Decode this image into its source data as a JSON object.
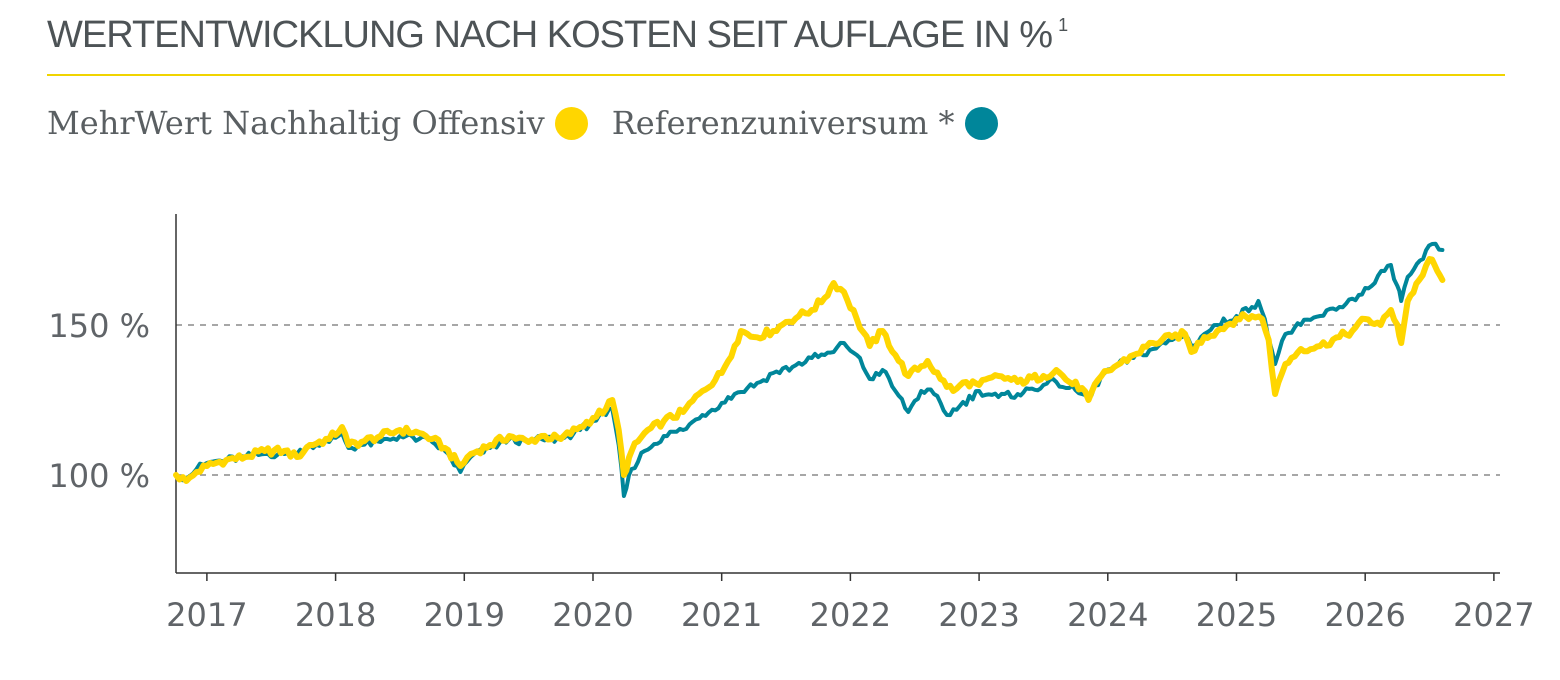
{
  "header": {
    "title": "WERTENTWICKLUNG NACH KOSTEN SEIT AUFLAGE IN %",
    "footnote_mark": "1"
  },
  "legend": {
    "items": [
      {
        "label": "MehrWert Nachhaltig Offensiv",
        "color": "#ffd600"
      },
      {
        "label": "Referenzuniversum *",
        "color": "#00869a"
      }
    ]
  },
  "chart_data": {
    "type": "line",
    "title": "WERTENTWICKLUNG NACH KOSTEN SEIT AUFLAGE IN %",
    "xlabel": "",
    "ylabel": "",
    "xlim": [
      2016.76,
      2027
    ],
    "ylim": [
      68,
      187
    ],
    "x_ticks": [
      "2017",
      "2018",
      "2019",
      "2020",
      "2021",
      "2022",
      "2023",
      "2024",
      "2025",
      "2026",
      "2027"
    ],
    "y_ticks": [
      {
        "value": 100,
        "label": "100 %"
      },
      {
        "value": 150,
        "label": "150 %"
      }
    ],
    "grid": "horizontal dashed at 100 % and 150 %",
    "legend_position": "top-left",
    "series": [
      {
        "name": "MehrWert Nachhaltig Offensiv",
        "color": "#ffd600",
        "points": [
          [
            2016.76,
            100
          ],
          [
            2016.84,
            98
          ],
          [
            2016.92,
            101
          ],
          [
            2017.0,
            103
          ],
          [
            2017.15,
            105
          ],
          [
            2017.3,
            106
          ],
          [
            2017.45,
            108
          ],
          [
            2017.6,
            108
          ],
          [
            2017.7,
            106
          ],
          [
            2017.8,
            110
          ],
          [
            2017.95,
            112
          ],
          [
            2018.05,
            116
          ],
          [
            2018.1,
            110
          ],
          [
            2018.2,
            111
          ],
          [
            2018.35,
            113
          ],
          [
            2018.5,
            115
          ],
          [
            2018.65,
            114
          ],
          [
            2018.75,
            112
          ],
          [
            2018.85,
            109
          ],
          [
            2018.97,
            103
          ],
          [
            2019.05,
            107
          ],
          [
            2019.2,
            110
          ],
          [
            2019.35,
            113
          ],
          [
            2019.5,
            111
          ],
          [
            2019.6,
            113
          ],
          [
            2019.75,
            112
          ],
          [
            2019.9,
            116
          ],
          [
            2020.0,
            119
          ],
          [
            2020.1,
            122
          ],
          [
            2020.15,
            125
          ],
          [
            2020.2,
            115
          ],
          [
            2020.24,
            100
          ],
          [
            2020.3,
            108
          ],
          [
            2020.4,
            114
          ],
          [
            2020.55,
            118
          ],
          [
            2020.7,
            121
          ],
          [
            2020.85,
            128
          ],
          [
            2021.0,
            134
          ],
          [
            2021.1,
            143
          ],
          [
            2021.15,
            148
          ],
          [
            2021.25,
            146
          ],
          [
            2021.4,
            148
          ],
          [
            2021.5,
            151
          ],
          [
            2021.6,
            153
          ],
          [
            2021.7,
            155
          ],
          [
            2021.8,
            159
          ],
          [
            2021.87,
            164
          ],
          [
            2021.95,
            161
          ],
          [
            2022.05,
            152
          ],
          [
            2022.15,
            143
          ],
          [
            2022.25,
            148
          ],
          [
            2022.35,
            140
          ],
          [
            2022.45,
            133
          ],
          [
            2022.6,
            138
          ],
          [
            2022.7,
            132
          ],
          [
            2022.8,
            128
          ],
          [
            2022.9,
            131
          ],
          [
            2023.0,
            130
          ],
          [
            2023.15,
            133
          ],
          [
            2023.3,
            131
          ],
          [
            2023.5,
            133
          ],
          [
            2023.6,
            135
          ],
          [
            2023.7,
            131
          ],
          [
            2023.8,
            129
          ],
          [
            2023.85,
            125
          ],
          [
            2023.95,
            133
          ],
          [
            2024.05,
            136
          ],
          [
            2024.2,
            140
          ],
          [
            2024.35,
            144
          ],
          [
            2024.5,
            146
          ],
          [
            2024.6,
            147
          ],
          [
            2024.65,
            141
          ],
          [
            2024.75,
            146
          ],
          [
            2024.85,
            148
          ],
          [
            2025.0,
            152
          ],
          [
            2025.12,
            153
          ],
          [
            2025.2,
            152
          ],
          [
            2025.25,
            145
          ],
          [
            2025.3,
            127
          ],
          [
            2025.38,
            137
          ],
          [
            2025.5,
            142
          ],
          [
            2025.65,
            143
          ],
          [
            2025.8,
            146
          ],
          [
            2025.9,
            148
          ],
          [
            2026.0,
            152
          ],
          [
            2026.12,
            150
          ],
          [
            2026.2,
            155
          ],
          [
            2026.25,
            150
          ],
          [
            2026.28,
            144
          ],
          [
            2026.33,
            158
          ],
          [
            2026.42,
            165
          ],
          [
            2026.5,
            172
          ],
          [
            2026.56,
            168
          ],
          [
            2026.6,
            165
          ]
        ]
      },
      {
        "name": "Referenzuniversum *",
        "color": "#00869a",
        "points": [
          [
            2016.76,
            100
          ],
          [
            2016.84,
            99
          ],
          [
            2016.92,
            102
          ],
          [
            2017.0,
            104
          ],
          [
            2017.15,
            105
          ],
          [
            2017.3,
            106
          ],
          [
            2017.45,
            107
          ],
          [
            2017.6,
            107
          ],
          [
            2017.7,
            107
          ],
          [
            2017.8,
            110
          ],
          [
            2017.95,
            111
          ],
          [
            2018.05,
            114
          ],
          [
            2018.1,
            109
          ],
          [
            2018.2,
            110
          ],
          [
            2018.35,
            111
          ],
          [
            2018.5,
            113
          ],
          [
            2018.65,
            112
          ],
          [
            2018.75,
            111
          ],
          [
            2018.85,
            108
          ],
          [
            2018.97,
            101
          ],
          [
            2019.05,
            106
          ],
          [
            2019.2,
            109
          ],
          [
            2019.35,
            112
          ],
          [
            2019.5,
            111
          ],
          [
            2019.6,
            112
          ],
          [
            2019.75,
            112
          ],
          [
            2019.9,
            115
          ],
          [
            2020.0,
            118
          ],
          [
            2020.1,
            120
          ],
          [
            2020.15,
            122
          ],
          [
            2020.2,
            110
          ],
          [
            2020.24,
            93
          ],
          [
            2020.3,
            102
          ],
          [
            2020.4,
            108
          ],
          [
            2020.55,
            113
          ],
          [
            2020.7,
            115
          ],
          [
            2020.85,
            120
          ],
          [
            2021.0,
            124
          ],
          [
            2021.1,
            127
          ],
          [
            2021.2,
            129
          ],
          [
            2021.3,
            131
          ],
          [
            2021.4,
            134
          ],
          [
            2021.55,
            136
          ],
          [
            2021.7,
            139
          ],
          [
            2021.8,
            140
          ],
          [
            2021.87,
            141
          ],
          [
            2021.95,
            144
          ],
          [
            2022.05,
            140
          ],
          [
            2022.15,
            132
          ],
          [
            2022.25,
            135
          ],
          [
            2022.35,
            128
          ],
          [
            2022.45,
            121
          ],
          [
            2022.55,
            128
          ],
          [
            2022.65,
            127
          ],
          [
            2022.75,
            120
          ],
          [
            2022.85,
            123
          ],
          [
            2023.0,
            128
          ],
          [
            2023.15,
            126
          ],
          [
            2023.3,
            127
          ],
          [
            2023.5,
            130
          ],
          [
            2023.6,
            131
          ],
          [
            2023.7,
            129
          ],
          [
            2023.8,
            127
          ],
          [
            2023.85,
            125
          ],
          [
            2023.95,
            133
          ],
          [
            2024.05,
            136
          ],
          [
            2024.2,
            139
          ],
          [
            2024.35,
            142
          ],
          [
            2024.5,
            145
          ],
          [
            2024.6,
            147
          ],
          [
            2024.65,
            143
          ],
          [
            2024.75,
            147
          ],
          [
            2024.85,
            150
          ],
          [
            2025.0,
            153
          ],
          [
            2025.12,
            156
          ],
          [
            2025.17,
            158
          ],
          [
            2025.22,
            152
          ],
          [
            2025.3,
            137
          ],
          [
            2025.38,
            147
          ],
          [
            2025.5,
            150
          ],
          [
            2025.65,
            153
          ],
          [
            2025.8,
            156
          ],
          [
            2025.95,
            160
          ],
          [
            2026.05,
            163
          ],
          [
            2026.15,
            168
          ],
          [
            2026.2,
            170
          ],
          [
            2026.25,
            163
          ],
          [
            2026.28,
            158
          ],
          [
            2026.33,
            166
          ],
          [
            2026.45,
            172
          ],
          [
            2026.52,
            177
          ],
          [
            2026.6,
            175
          ]
        ]
      }
    ]
  }
}
